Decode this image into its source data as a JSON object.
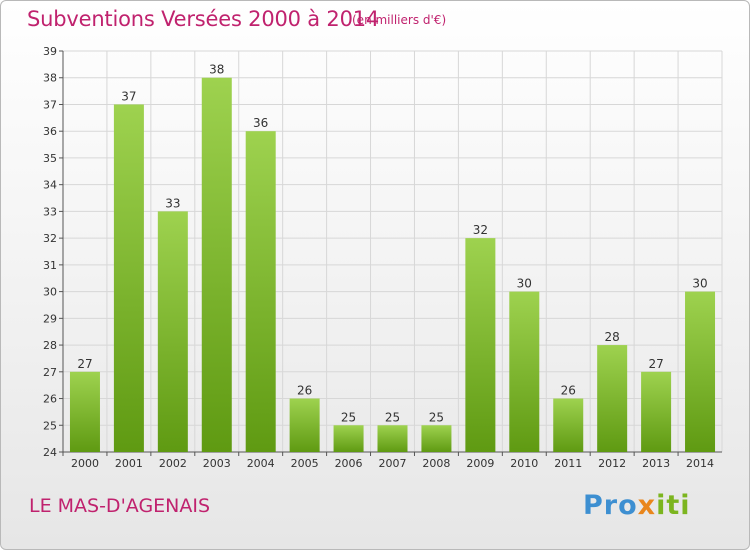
{
  "header": {
    "title": "Subventions Versées 2000 à 2014",
    "subtitle": "(en milliers d'€)"
  },
  "footer": {
    "commune": "LE MAS-D'AGENAIS",
    "logo_parts": [
      "Pro",
      "x",
      "iti"
    ]
  },
  "colors": {
    "title": "#c0226e",
    "bar_top": "#9ed24f",
    "bar_bottom": "#5f9a12",
    "grid": "#d7d7d7"
  },
  "chart_data": {
    "type": "bar",
    "title": "Subventions Versées 2000 à 2014",
    "subtitle": "(en milliers d'€)",
    "categories": [
      "2000",
      "2001",
      "2002",
      "2003",
      "2004",
      "2005",
      "2006",
      "2007",
      "2008",
      "2009",
      "2010",
      "2011",
      "2012",
      "2013",
      "2014"
    ],
    "values": [
      27,
      37,
      33,
      38,
      36,
      26,
      25,
      25,
      25,
      32,
      30,
      26,
      28,
      27,
      30
    ],
    "ylim": [
      24,
      39
    ],
    "yticks": [
      24,
      25,
      26,
      27,
      28,
      29,
      30,
      31,
      32,
      33,
      34,
      35,
      36,
      37,
      38,
      39
    ],
    "grid": true,
    "data_labels": true
  }
}
